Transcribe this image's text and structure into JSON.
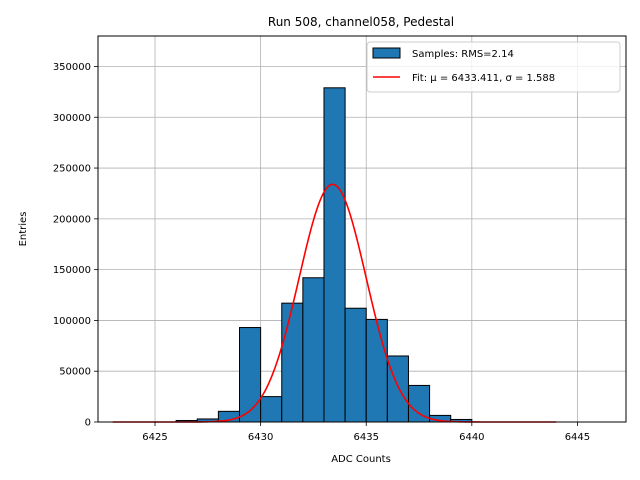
{
  "chart_data": {
    "type": "bar",
    "title": "Run 508, channel058, Pedestal",
    "xlabel": "ADC Counts",
    "ylabel": "Entries",
    "xlim": [
      6422.3,
      6447.3
    ],
    "ylim": [
      0,
      380000
    ],
    "xticks": [
      6425,
      6430,
      6435,
      6440,
      6445
    ],
    "yticks": [
      0,
      50000,
      100000,
      150000,
      200000,
      250000,
      300000,
      350000
    ],
    "grid": true,
    "legend_position": "top-right",
    "histogram": {
      "name": "Samples: RMS=2.14",
      "color": "#1f77b4",
      "edge_color": "#000000",
      "bin_width": 1,
      "bins": [
        {
          "left": 6426,
          "value": 1500
        },
        {
          "left": 6427,
          "value": 3000
        },
        {
          "left": 6428,
          "value": 10500
        },
        {
          "left": 6429,
          "value": 93000
        },
        {
          "left": 6430,
          "value": 25000
        },
        {
          "left": 6431,
          "value": 117000
        },
        {
          "left": 6432,
          "value": 142000
        },
        {
          "left": 6433,
          "value": 329000
        },
        {
          "left": 6434,
          "value": 112000
        },
        {
          "left": 6435,
          "value": 101000
        },
        {
          "left": 6436,
          "value": 65000
        },
        {
          "left": 6437,
          "value": 36000
        },
        {
          "left": 6438,
          "value": 6500
        },
        {
          "left": 6439,
          "value": 2500
        }
      ]
    },
    "fit": {
      "name": "Fit: μ = 6433.411, σ = 1.588",
      "color": "#ff0000",
      "mu": 6433.411,
      "sigma": 1.588,
      "amplitude": 234000,
      "x_range": [
        6423,
        6444
      ]
    }
  }
}
